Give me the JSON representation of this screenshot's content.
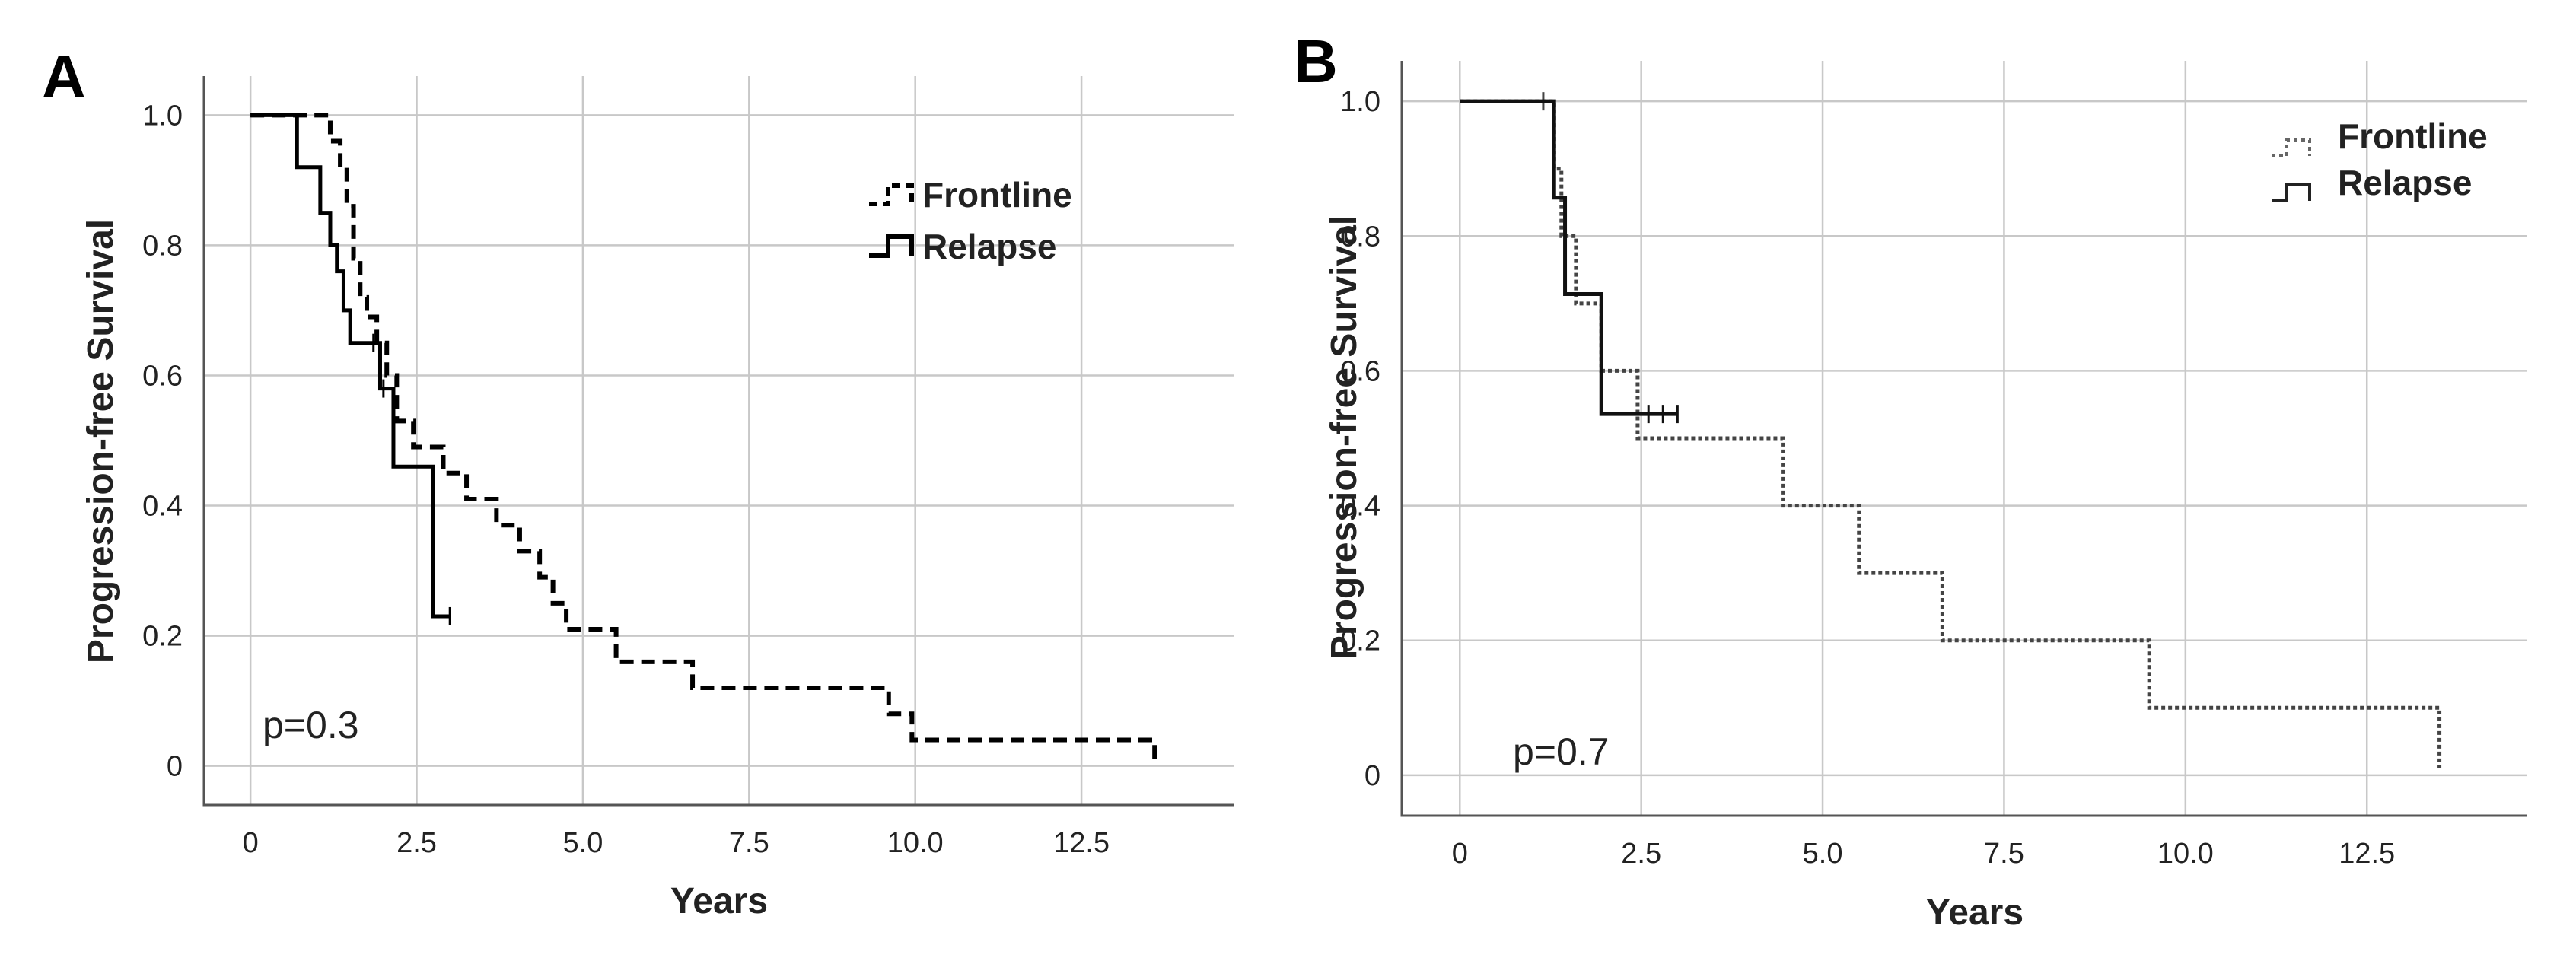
{
  "chart_data": [
    {
      "panel_label": "A",
      "type": "line",
      "subtype": "kaplan-meier",
      "xlabel": "Years",
      "ylabel": "Progression-free Survival",
      "xlim": [
        -0.7,
        14.8
      ],
      "ylim": [
        -0.06,
        1.06
      ],
      "x_ticks": [
        0,
        2.5,
        5.0,
        7.5,
        10.0,
        12.5
      ],
      "x_tick_labels": [
        "0",
        "2.5",
        "5.0",
        "7.5",
        "10.0",
        "12.5"
      ],
      "y_ticks": [
        0,
        0.2,
        0.4,
        0.6,
        0.8,
        1.0
      ],
      "y_tick_labels": [
        "0",
        "0.2",
        "0.4",
        "0.6",
        "0.8",
        "1.0"
      ],
      "grid": true,
      "legend_position": "top-right",
      "annotation": "p=0.3",
      "series": [
        {
          "name": "Frontline",
          "style": "dashed",
          "color": "#000000",
          "steps": [
            [
              0,
              1.0
            ],
            [
              1.2,
              0.96
            ],
            [
              1.35,
              0.92
            ],
            [
              1.45,
              0.86
            ],
            [
              1.55,
              0.78
            ],
            [
              1.65,
              0.72
            ],
            [
              1.75,
              0.69
            ],
            [
              1.9,
              0.65
            ],
            [
              2.05,
              0.6
            ],
            [
              2.2,
              0.53
            ],
            [
              2.45,
              0.49
            ],
            [
              2.9,
              0.45
            ],
            [
              3.25,
              0.41
            ],
            [
              3.7,
              0.37
            ],
            [
              4.05,
              0.33
            ],
            [
              4.35,
              0.29
            ],
            [
              4.55,
              0.25
            ],
            [
              4.75,
              0.21
            ],
            [
              5.5,
              0.16
            ],
            [
              6.65,
              0.12
            ],
            [
              9.6,
              0.08
            ],
            [
              9.95,
              0.04
            ],
            [
              13.6,
              0.01
            ]
          ],
          "end_x": 13.6,
          "censor_marks": [
            [
              1.85,
              0.65
            ]
          ]
        },
        {
          "name": "Relapse",
          "style": "solid",
          "color": "#000000",
          "steps": [
            [
              0,
              1.0
            ],
            [
              0.7,
              0.92
            ],
            [
              1.05,
              0.85
            ],
            [
              1.2,
              0.8
            ],
            [
              1.3,
              0.76
            ],
            [
              1.4,
              0.7
            ],
            [
              1.5,
              0.65
            ],
            [
              1.95,
              0.58
            ],
            [
              2.15,
              0.46
            ],
            [
              2.75,
              0.23
            ]
          ],
          "end_x": 3.0,
          "censor_marks": [
            [
              2.0,
              0.58
            ],
            [
              3.0,
              0.23
            ]
          ]
        }
      ]
    },
    {
      "panel_label": "B",
      "type": "line",
      "subtype": "kaplan-meier",
      "xlabel": "Years",
      "ylabel": "Progression-free Survival",
      "xlim": [
        -0.8,
        14.7
      ],
      "ylim": [
        -0.06,
        1.06
      ],
      "x_ticks": [
        0,
        2.5,
        5.0,
        7.5,
        10.0,
        12.5
      ],
      "x_tick_labels": [
        "0",
        "2.5",
        "5.0",
        "7.5",
        "10.0",
        "12.5"
      ],
      "y_ticks": [
        0,
        0.2,
        0.4,
        0.6,
        0.8,
        1.0
      ],
      "y_tick_labels": [
        "0",
        "0.2",
        "0.4",
        "0.6",
        "0.8",
        "1.0"
      ],
      "grid": true,
      "legend_position": "top-right",
      "annotation": "p=0.7",
      "series": [
        {
          "name": "Frontline",
          "style": "dotted",
          "color": "#444444",
          "steps": [
            [
              0,
              1.0
            ],
            [
              1.3,
              0.9
            ],
            [
              1.4,
              0.8
            ],
            [
              1.6,
              0.7
            ],
            [
              1.95,
              0.6
            ],
            [
              2.45,
              0.5
            ],
            [
              4.45,
              0.4
            ],
            [
              5.5,
              0.3
            ],
            [
              6.65,
              0.2
            ],
            [
              9.5,
              0.1
            ],
            [
              13.5,
              0.01
            ]
          ],
          "end_x": 13.5,
          "censor_marks": [
            [
              1.15,
              1.0
            ]
          ]
        },
        {
          "name": "Relapse",
          "style": "solid",
          "color": "#111111",
          "steps": [
            [
              0,
              1.0
            ],
            [
              1.3,
              0.857
            ],
            [
              1.45,
              0.714
            ],
            [
              1.95,
              0.536
            ]
          ],
          "end_x": 3.0,
          "censor_marks": [
            [
              2.6,
              0.536
            ],
            [
              2.8,
              0.536
            ],
            [
              3.0,
              0.536
            ]
          ]
        }
      ]
    }
  ]
}
